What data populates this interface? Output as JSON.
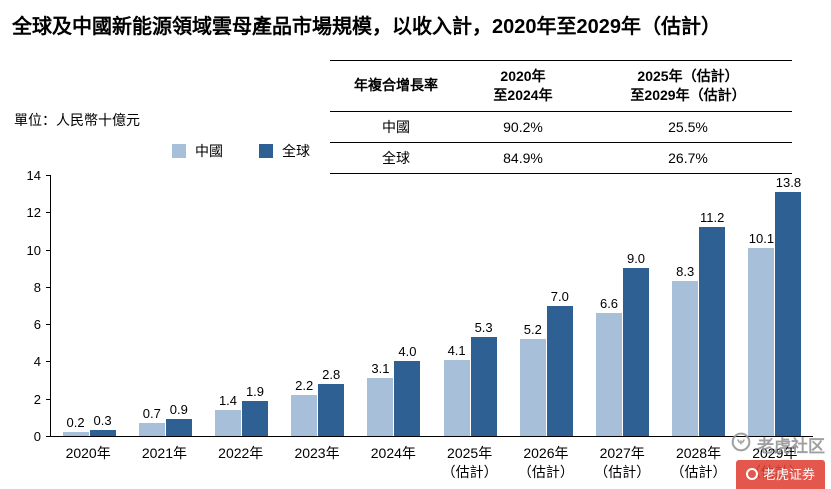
{
  "title": "全球及中國新能源領域雲母產品市場規模，以收入計，2020年至2029年（估計）",
  "unit_label": "單位：人民幣十億元",
  "legend": [
    {
      "label": "中國",
      "color": "#A8BFD9"
    },
    {
      "label": "全球",
      "color": "#2E6094"
    }
  ],
  "table": {
    "col1_header": "年複合增長率",
    "col2_header_line1": "2020年",
    "col2_header_line2": "至2024年",
    "col3_header_line1": "2025年（估計）",
    "col3_header_line2": "至2029年（估計）",
    "rows": [
      {
        "label": "中國",
        "v1": "90.2%",
        "v2": "25.5%"
      },
      {
        "label": "全球",
        "v1": "84.9%",
        "v2": "26.7%"
      }
    ]
  },
  "watermark": {
    "name": "老虎社区",
    "badge": "老虎证券"
  },
  "chart_data": {
    "type": "bar",
    "title": "全球及中國新能源領域雲母產品市場規模，以收入計，2020年至2029年（估計）",
    "xlabel": "",
    "ylabel": "單位：人民幣十億元",
    "ylim": [
      0,
      14
    ],
    "ytick_step": 2,
    "grid": false,
    "legend_position": "top-left",
    "categories": [
      "2020年",
      "2021年",
      "2022年",
      "2023年",
      "2024年",
      "2025年（估計）",
      "2026年（估計）",
      "2027年（估計）",
      "2028年（估計）",
      "2029年（估計）"
    ],
    "series": [
      {
        "name": "中國",
        "color": "#A8BFD9",
        "values": [
          0.2,
          0.7,
          1.4,
          2.2,
          3.1,
          4.1,
          5.2,
          6.6,
          8.3,
          10.1
        ]
      },
      {
        "name": "全球",
        "color": "#2E6094",
        "values": [
          0.3,
          0.9,
          1.9,
          2.8,
          4.0,
          5.3,
          7.0,
          9.0,
          11.2,
          13.8
        ]
      }
    ]
  }
}
